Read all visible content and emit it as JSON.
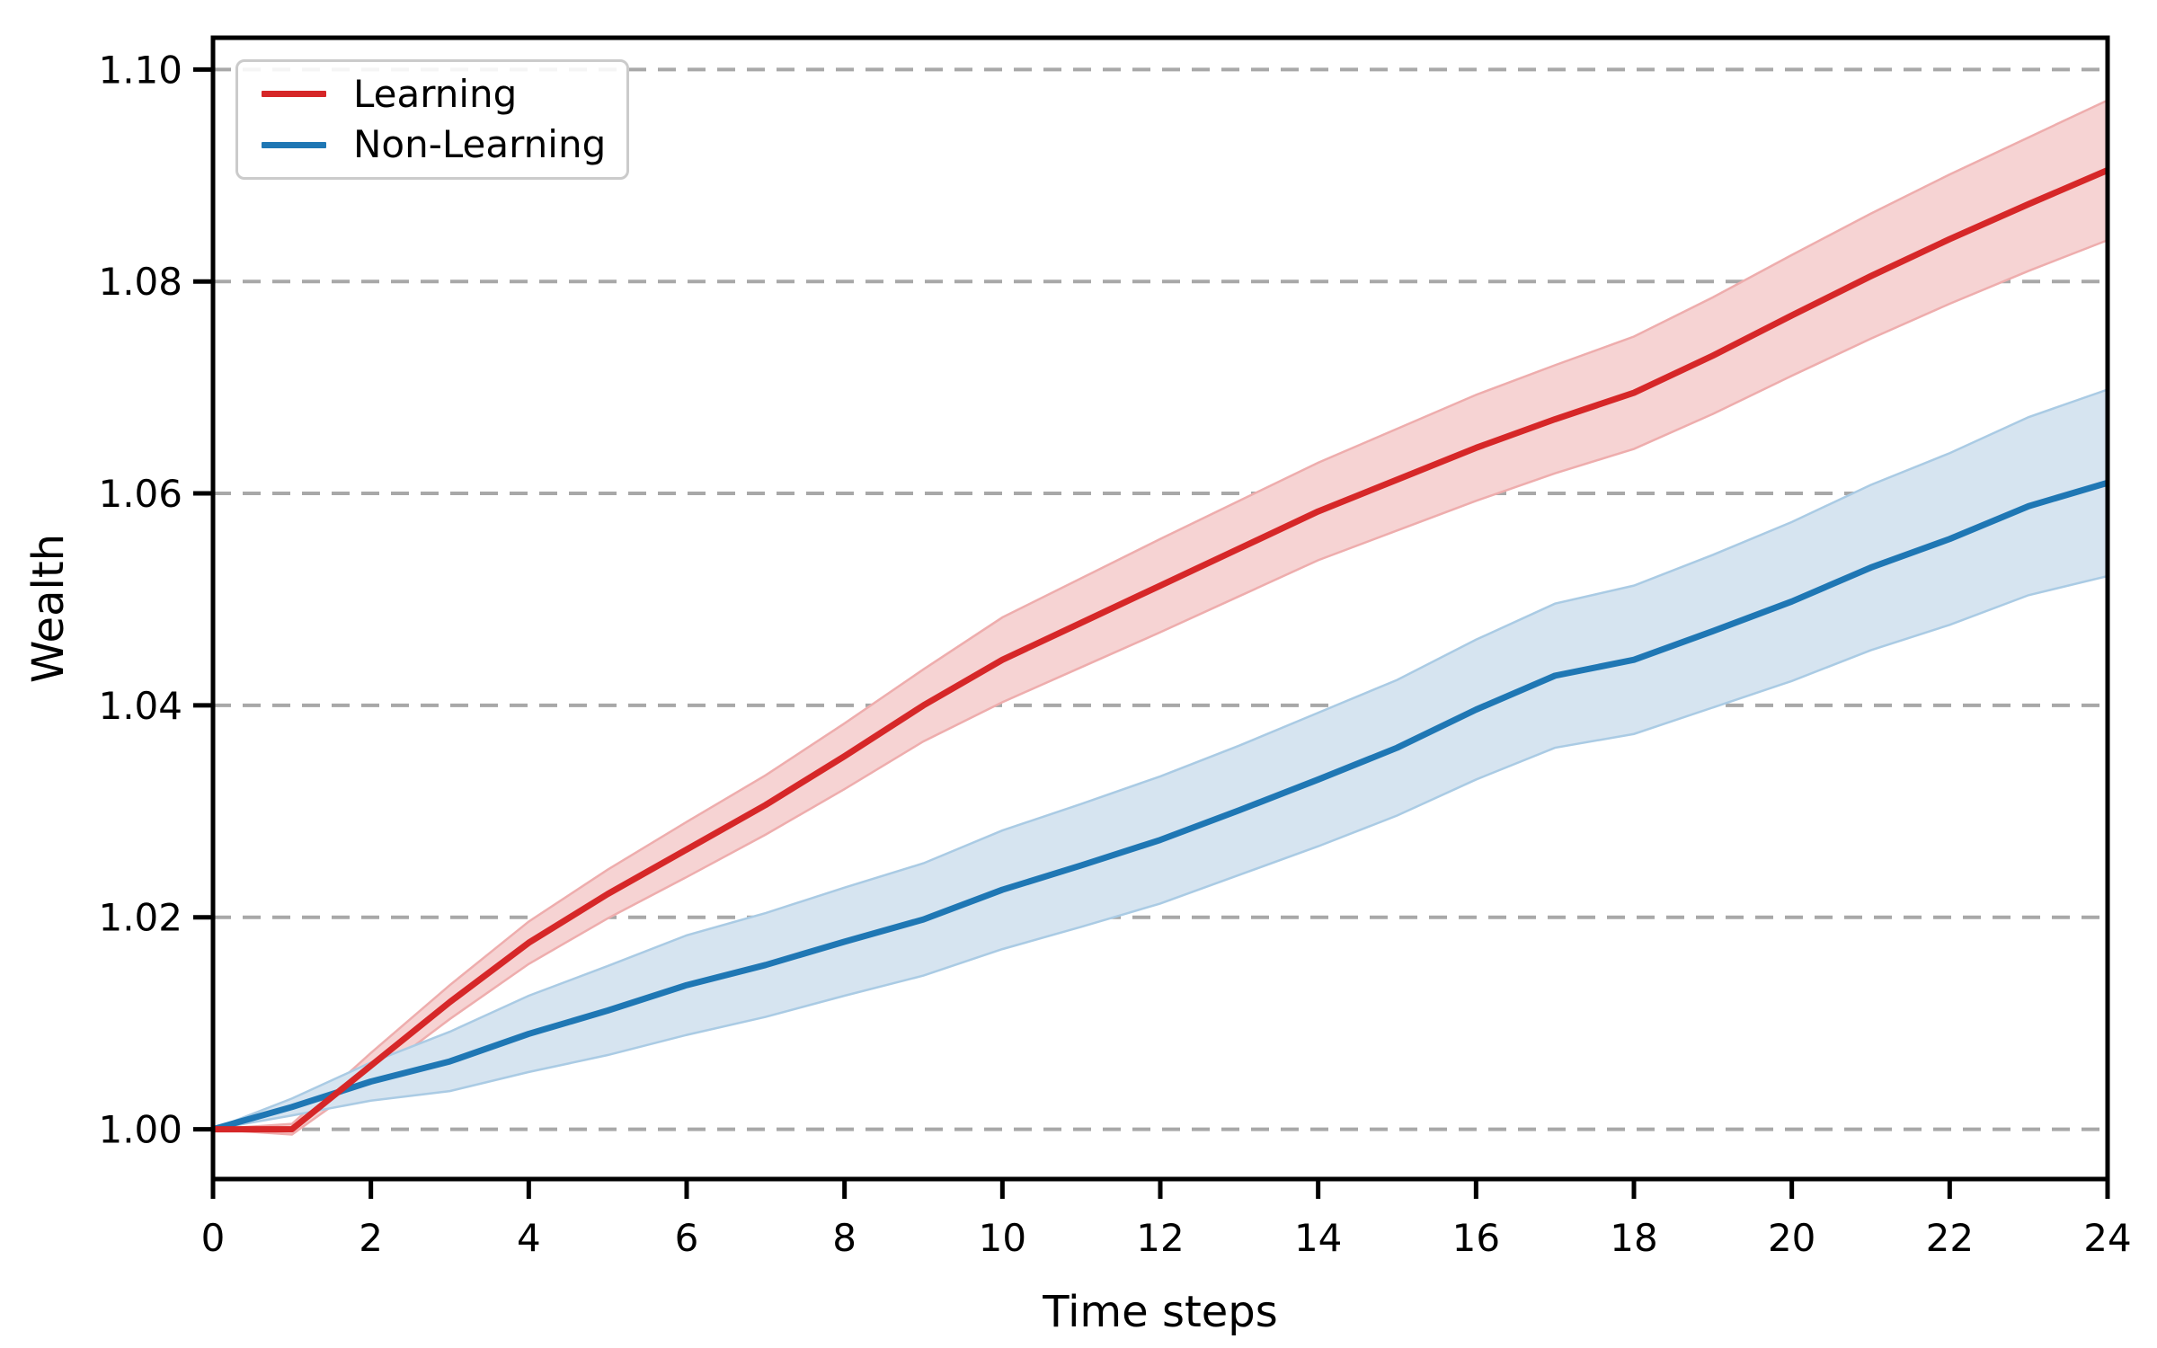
{
  "chart_data": {
    "type": "line",
    "title": "",
    "xlabel": "Time steps",
    "ylabel": "Wealth",
    "x": [
      0,
      1,
      2,
      3,
      4,
      5,
      6,
      7,
      8,
      9,
      10,
      11,
      12,
      13,
      14,
      15,
      16,
      17,
      18,
      19,
      20,
      21,
      22,
      23,
      24
    ],
    "xlim": [
      0,
      24
    ],
    "ylim": [
      0.9953,
      1.103
    ],
    "xticks": [
      0,
      2,
      4,
      6,
      8,
      10,
      12,
      14,
      16,
      18,
      20,
      22,
      24
    ],
    "xtick_labels": [
      "0",
      "2",
      "4",
      "6",
      "8",
      "10",
      "12",
      "14",
      "16",
      "18",
      "20",
      "22",
      "24"
    ],
    "yticks": [
      1.0,
      1.02,
      1.04,
      1.06,
      1.08,
      1.1
    ],
    "ytick_labels": [
      "1.00",
      "1.02",
      "1.04",
      "1.06",
      "1.08",
      "1.10"
    ],
    "grid": "horizontal-dashed",
    "grid_color": "#a8a8a8",
    "spine_color": "#000000",
    "legend_position": "upper-left",
    "series": [
      {
        "name": "Learning",
        "color": "#d62728",
        "band_color": "#f6d3d3",
        "band_edge_color": "#eeadad",
        "values": [
          1.0,
          1.0,
          1.006,
          1.012,
          1.0176,
          1.0222,
          1.0264,
          1.0306,
          1.0352,
          1.04,
          1.0443,
          1.0478,
          1.0513,
          1.0548,
          1.0583,
          1.0613,
          1.0643,
          1.067,
          1.0695,
          1.073,
          1.0768,
          1.0805,
          1.084,
          1.0873,
          1.0905
        ],
        "band_upper": [
          1.0,
          1.0005,
          1.0072,
          1.0136,
          1.0196,
          1.0245,
          1.029,
          1.0334,
          1.0383,
          1.0434,
          1.0483,
          1.052,
          1.0557,
          1.0593,
          1.0629,
          1.0661,
          1.0693,
          1.0721,
          1.0748,
          1.0785,
          1.0825,
          1.0864,
          1.0901,
          1.0936,
          1.0971
        ],
        "band_lower": [
          1.0,
          0.9995,
          1.0048,
          1.0104,
          1.0156,
          1.0199,
          1.0238,
          1.0278,
          1.0321,
          1.0366,
          1.0403,
          1.0436,
          1.0469,
          1.0503,
          1.0537,
          1.0565,
          1.0593,
          1.0619,
          1.0642,
          1.0675,
          1.0711,
          1.0746,
          1.0779,
          1.081,
          1.0839
        ]
      },
      {
        "name": "Non-Learning",
        "color": "#1f77b4",
        "band_color": "#d6e4f0",
        "band_edge_color": "#aacbe4",
        "values": [
          1.0,
          1.0021,
          1.0045,
          1.0064,
          1.009,
          1.0112,
          1.0136,
          1.0155,
          1.0177,
          1.0198,
          1.0226,
          1.0249,
          1.0273,
          1.0301,
          1.033,
          1.036,
          1.0396,
          1.0428,
          1.0443,
          1.047,
          1.0498,
          1.053,
          1.0557,
          1.0588,
          1.061
        ],
        "band_upper": [
          1.0,
          1.0029,
          1.0063,
          1.0092,
          1.0126,
          1.0154,
          1.0183,
          1.0204,
          1.0228,
          1.0251,
          1.0282,
          1.0307,
          1.0333,
          1.0362,
          1.0393,
          1.0424,
          1.0462,
          1.0496,
          1.0513,
          1.0542,
          1.0573,
          1.0608,
          1.0638,
          1.0672,
          1.0698
        ],
        "band_lower": [
          1.0,
          1.0013,
          1.0027,
          1.0036,
          1.0054,
          1.007,
          1.0089,
          1.0106,
          1.0126,
          1.0145,
          1.017,
          1.0191,
          1.0213,
          1.024,
          1.0267,
          1.0296,
          1.033,
          1.036,
          1.0373,
          1.0398,
          1.0423,
          1.0452,
          1.0476,
          1.0504,
          1.0522
        ]
      }
    ]
  }
}
